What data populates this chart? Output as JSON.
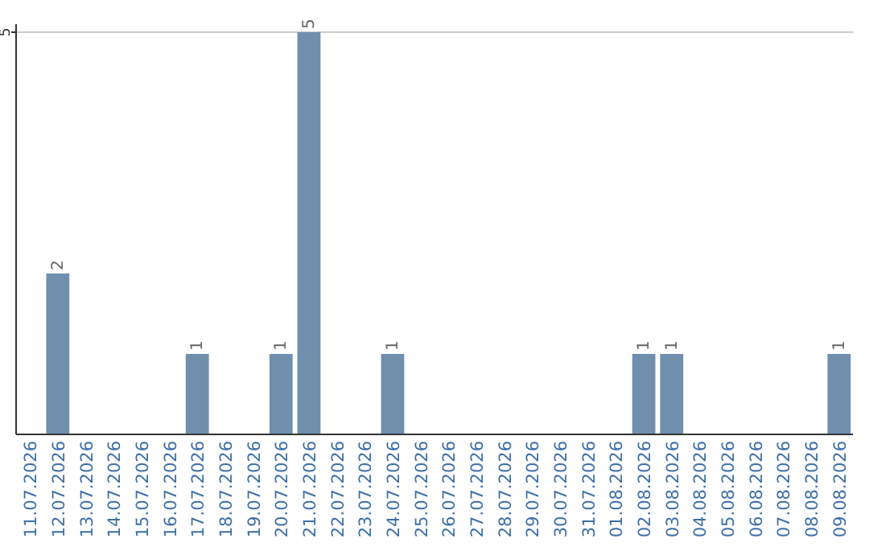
{
  "chart_data": {
    "type": "bar",
    "categories": [
      "11.07.2026",
      "12.07.2026",
      "13.07.2026",
      "14.07.2026",
      "15.07.2026",
      "16.07.2026",
      "17.07.2026",
      "18.07.2026",
      "19.07.2026",
      "20.07.2026",
      "21.07.2026",
      "22.07.2026",
      "23.07.2026",
      "24.07.2026",
      "25.07.2026",
      "26.07.2026",
      "27.07.2026",
      "28.07.2026",
      "29.07.2026",
      "30.07.2026",
      "31.07.2026",
      "01.08.2026",
      "02.08.2026",
      "03.08.2026",
      "04.08.2026",
      "05.08.2026",
      "06.08.2026",
      "07.08.2026",
      "08.08.2026",
      "09.08.2026"
    ],
    "values": [
      0,
      2,
      0,
      0,
      0,
      0,
      1,
      0,
      0,
      1,
      5,
      0,
      0,
      1,
      0,
      0,
      0,
      0,
      0,
      0,
      0,
      0,
      1,
      1,
      0,
      0,
      0,
      0,
      0,
      1
    ],
    "value_labels": [
      null,
      "2",
      null,
      null,
      null,
      null,
      "1",
      null,
      null,
      "1",
      "5",
      null,
      null,
      "1",
      null,
      null,
      null,
      null,
      null,
      null,
      null,
      null,
      "1",
      "1",
      null,
      null,
      null,
      null,
      null,
      "1"
    ],
    "color": "#6f8fad",
    "ylim": [
      0,
      5.1
    ],
    "yticks": [
      5
    ],
    "grid": "y"
  }
}
